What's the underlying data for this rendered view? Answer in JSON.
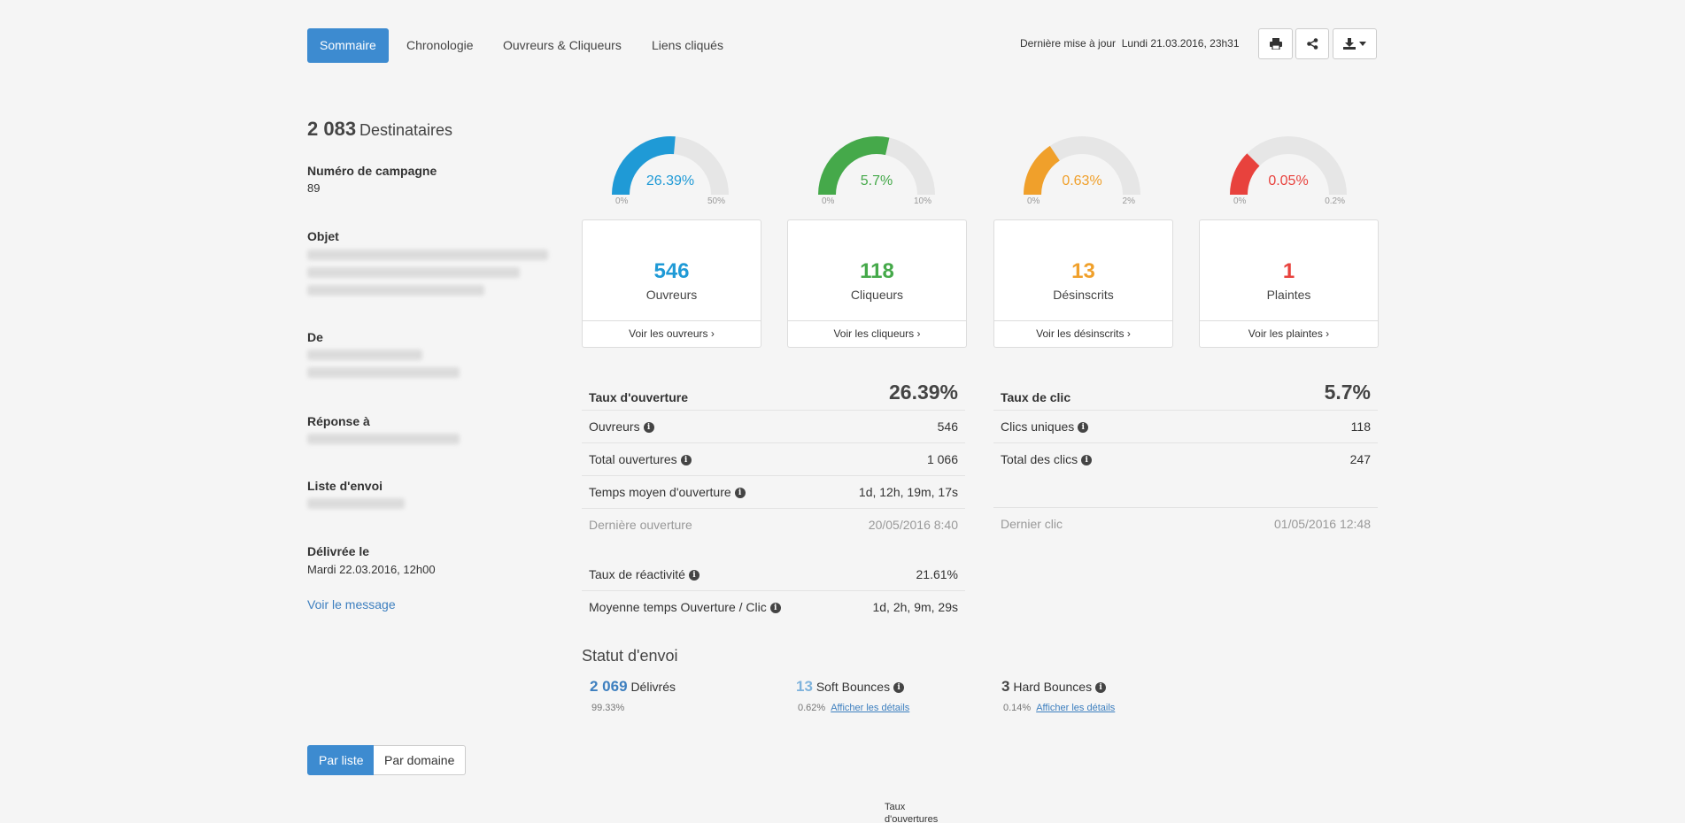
{
  "tabs": [
    {
      "label": "Sommaire",
      "active": true
    },
    {
      "label": "Chronologie"
    },
    {
      "label": "Ouvreurs & Cliqueurs"
    },
    {
      "label": "Liens cliqués"
    }
  ],
  "header": {
    "updated_label": "Dernière mise à jour",
    "updated_value": "Lundi 21.03.2016, 23h31",
    "icons": [
      "print-icon",
      "share-icon",
      "download-icon"
    ]
  },
  "summary": {
    "recipients_count": "2 083",
    "recipients_label": "Destinataires",
    "campaign_label": "Numéro de campagne",
    "campaign_value": "89",
    "subject_label": "Objet",
    "from_label": "De",
    "reply_label": "Réponse à",
    "list_label": "Liste d'envoi",
    "delivered_label": "Délivrée le",
    "delivered_value": "Mardi 22.03.2016, 12h00",
    "view_message": "Voir le message"
  },
  "gauges": [
    {
      "value_text": "26.39%",
      "fraction": 0.5278,
      "min": "0%",
      "max": "50%",
      "color": "#1f9ad6"
    },
    {
      "value_text": "5.7%",
      "fraction": 0.57,
      "min": "0%",
      "max": "10%",
      "color": "#45a94a"
    },
    {
      "value_text": "0.63%",
      "fraction": 0.315,
      "min": "0%",
      "max": "2%",
      "color": "#f0a02b"
    },
    {
      "value_text": "0.05%",
      "fraction": 0.25,
      "min": "0%",
      "max": "0.2%",
      "color": "#e8423d"
    }
  ],
  "cards": [
    {
      "number": "546",
      "label": "Ouvreurs",
      "link": "Voir les ouvreurs ›",
      "color": "#1f9ad6"
    },
    {
      "number": "118",
      "label": "Cliqueurs",
      "link": "Voir les cliqueurs ›",
      "color": "#45a94a"
    },
    {
      "number": "13",
      "label": "Désinscrits",
      "link": "Voir les désinscrits ›",
      "color": "#f0a02b"
    },
    {
      "number": "1",
      "label": "Plaintes",
      "link": "Voir les plaintes ›",
      "color": "#e8423d"
    }
  ],
  "open_stats": {
    "title": "Taux d'ouverture",
    "value": "26.39%",
    "rows": [
      {
        "label": "Ouvreurs",
        "value": "546"
      },
      {
        "label": "Total ouvertures",
        "value": "1 066"
      },
      {
        "label": "Temps moyen d'ouverture",
        "value": "1d, 12h, 19m, 17s"
      },
      {
        "label": "Dernière ouverture",
        "value": "20/05/2016 8:40"
      }
    ],
    "extra_rows": [
      {
        "label": "Taux de réactivité",
        "value": "21.61%"
      },
      {
        "label": "Moyenne temps Ouverture / Clic",
        "value": "1d, 2h, 9m, 29s"
      }
    ]
  },
  "click_stats": {
    "title": "Taux de clic",
    "value": "5.7%",
    "rows": [
      {
        "label": "Clics uniques",
        "value": "118"
      },
      {
        "label": "Total des clics",
        "value": "247"
      },
      {
        "label": "Dernier clic",
        "value": "01/05/2016 12:48"
      }
    ]
  },
  "send_status": {
    "title": "Statut d'envoi",
    "delivered": {
      "count": "2 069",
      "label": "Délivrés",
      "pct": "99.33%"
    },
    "soft": {
      "count": "13",
      "label": "Soft Bounces",
      "pct": "0.62%",
      "link": "Afficher les détails"
    },
    "hard": {
      "count": "3",
      "label": "Hard Bounces",
      "pct": "0.14%",
      "link": "Afficher les détails"
    }
  },
  "segment": [
    {
      "label": "Par liste",
      "active": true
    },
    {
      "label": "Par domaine"
    }
  ],
  "bottom_label": "Taux d'ouvertures"
}
